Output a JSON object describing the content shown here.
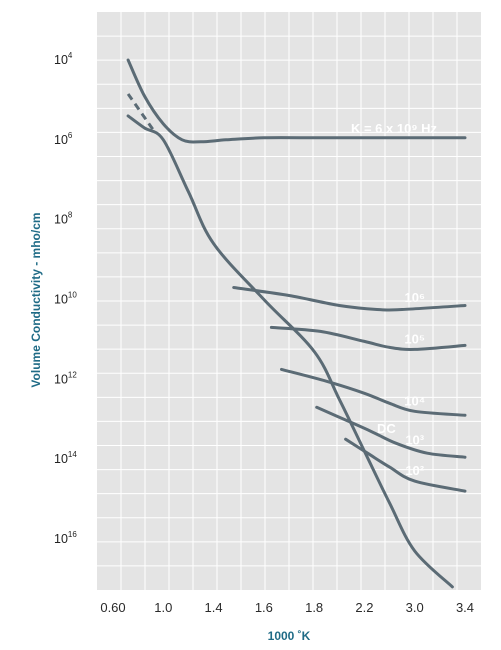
{
  "chart_data": {
    "type": "line",
    "title": "",
    "xlabel": "1000 ˚K",
    "ylabel": "Volume Conductivity - mho/cm",
    "x_ticks": [
      "0.60",
      "1.0",
      "1.4",
      "1.6",
      "1.8",
      "2.2",
      "3.0",
      "3.4"
    ],
    "y_ticks": [
      {
        "base": "10",
        "exp": "4"
      },
      {
        "base": "10",
        "exp": "6"
      },
      {
        "base": "10",
        "exp": "8"
      },
      {
        "base": "10",
        "exp": "10"
      },
      {
        "base": "10",
        "exp": "12"
      },
      {
        "base": "10",
        "exp": "14"
      },
      {
        "base": "10",
        "exp": "16"
      }
    ],
    "grid": true,
    "line_color": "#5b6b75",
    "grid_color": "#ffffff",
    "plot_bg": "#e4e4e4",
    "series": [
      {
        "label": "K = 6 x 10⁹ Hz",
        "dashed_segment": true,
        "points": [
          [
            0.72,
            4.0
          ],
          [
            0.85,
            4.9
          ],
          [
            1.0,
            5.6
          ],
          [
            1.15,
            6.0
          ],
          [
            1.3,
            6.05
          ],
          [
            1.45,
            6.0
          ],
          [
            1.6,
            5.95
          ],
          [
            1.8,
            5.95
          ],
          [
            2.0,
            5.95
          ],
          [
            2.4,
            5.95
          ],
          [
            2.8,
            5.95
          ],
          [
            3.4,
            5.95
          ]
        ]
      },
      {
        "label": "DC",
        "dashed_segment": true,
        "points": [
          [
            0.72,
            5.4
          ],
          [
            0.85,
            5.7
          ],
          [
            1.0,
            6.0
          ],
          [
            1.2,
            7.3
          ],
          [
            1.4,
            8.6
          ],
          [
            1.6,
            10.0
          ],
          [
            1.8,
            11.3
          ],
          [
            2.0,
            12.5
          ],
          [
            2.2,
            13.8
          ],
          [
            2.6,
            15.1
          ],
          [
            3.0,
            16.3
          ],
          [
            3.3,
            17.2
          ]
        ]
      },
      {
        "label": "10⁶",
        "points": [
          [
            1.48,
            9.7
          ],
          [
            1.7,
            9.9
          ],
          [
            2.0,
            10.15
          ],
          [
            2.4,
            10.25
          ],
          [
            2.8,
            10.25
          ],
          [
            3.4,
            10.15
          ]
        ]
      },
      {
        "label": "10⁵",
        "points": [
          [
            1.63,
            10.7
          ],
          [
            1.85,
            10.8
          ],
          [
            2.2,
            11.05
          ],
          [
            2.6,
            11.2
          ],
          [
            3.0,
            11.25
          ],
          [
            3.4,
            11.15
          ]
        ]
      },
      {
        "label": "10⁴",
        "points": [
          [
            1.67,
            11.75
          ],
          [
            1.9,
            12.05
          ],
          [
            2.2,
            12.35
          ],
          [
            2.6,
            12.6
          ],
          [
            3.0,
            12.8
          ],
          [
            3.4,
            12.9
          ]
        ]
      },
      {
        "label": "10³",
        "points": [
          [
            1.82,
            12.7
          ],
          [
            2.0,
            12.95
          ],
          [
            2.3,
            13.3
          ],
          [
            2.7,
            13.6
          ],
          [
            3.1,
            13.85
          ],
          [
            3.4,
            13.95
          ]
        ]
      },
      {
        "label": "10²",
        "points": [
          [
            2.05,
            13.5
          ],
          [
            2.25,
            13.85
          ],
          [
            2.6,
            14.2
          ],
          [
            3.0,
            14.55
          ],
          [
            3.4,
            14.8
          ]
        ]
      }
    ],
    "annotations": [
      {
        "text": "K = 6 x 10⁹ Hz",
        "series": 0
      },
      {
        "text": "10⁶",
        "series": 2
      },
      {
        "text": "10⁵",
        "series": 3
      },
      {
        "text": "10⁴",
        "series": 4
      },
      {
        "text": "10³",
        "series": 5
      },
      {
        "text": "10²",
        "series": 6
      },
      {
        "text": "DC",
        "series": 1
      }
    ]
  }
}
